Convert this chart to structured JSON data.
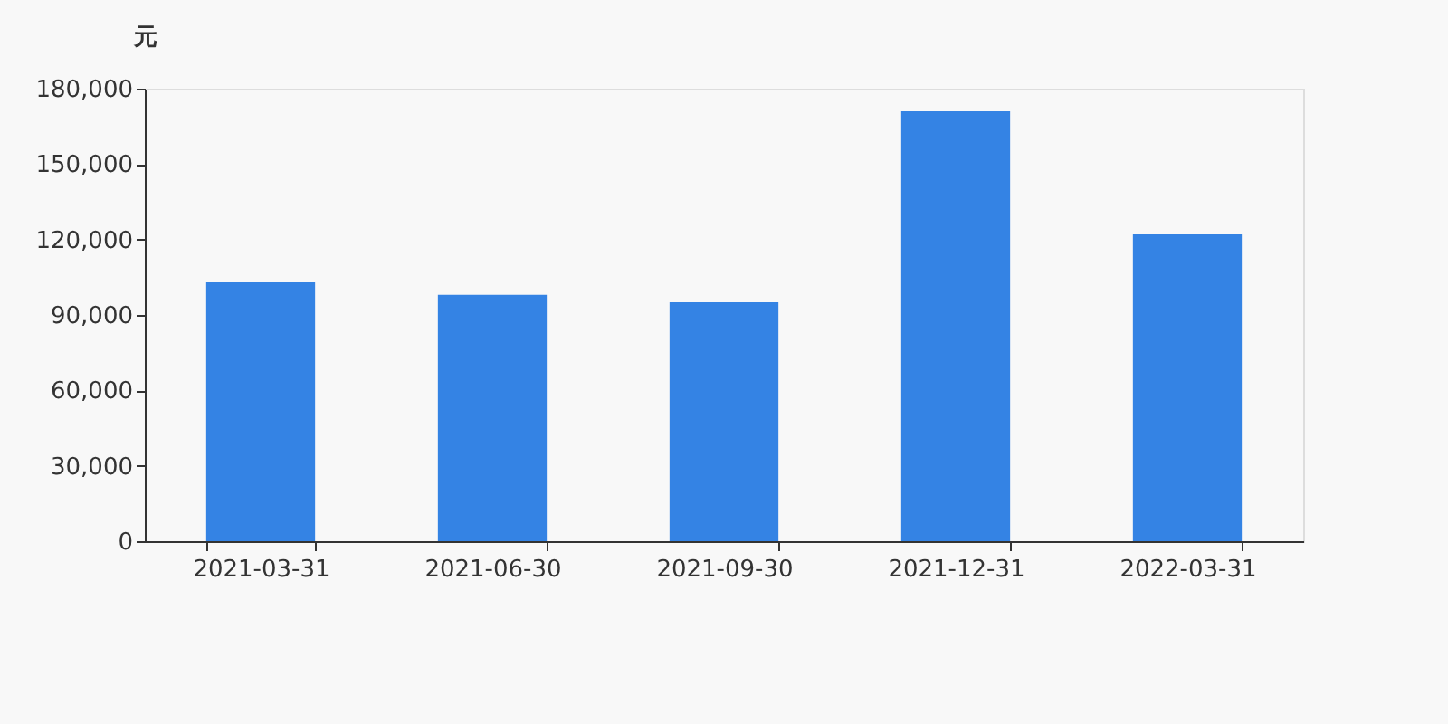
{
  "chart_data": {
    "type": "bar",
    "ylabel": "元",
    "categories": [
      "2021-03-31",
      "2021-06-30",
      "2021-09-30",
      "2021-12-31",
      "2022-03-31"
    ],
    "values": [
      103000,
      98000,
      95000,
      171000,
      122000
    ],
    "color": "#3483e4",
    "ylim": [
      0,
      180000
    ],
    "yticks": [
      0,
      {
        "value": 30000,
        "label": "30,000"
      },
      {
        "value": 60000,
        "label": "60,000"
      },
      {
        "value": 90000,
        "label": "90,000"
      },
      {
        "value": 120000,
        "label": "120,000"
      },
      {
        "value": 150000,
        "label": "150,000"
      },
      {
        "value": 180000,
        "label": "180,000"
      }
    ],
    "grid": false
  }
}
